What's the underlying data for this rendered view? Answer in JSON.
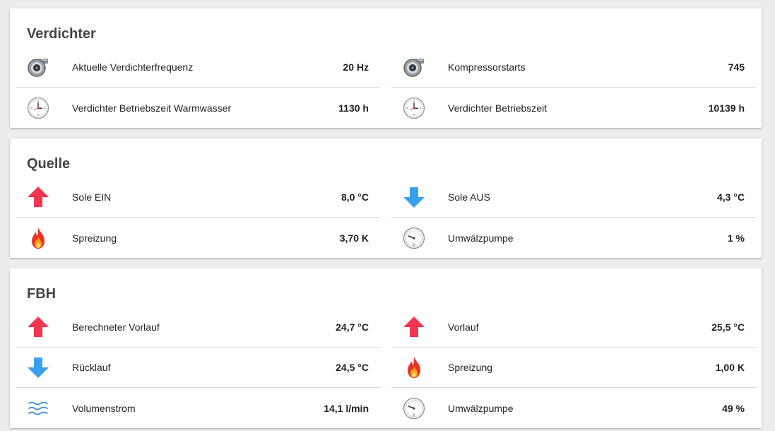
{
  "cards": [
    {
      "title": "Verdichter",
      "left": [
        {
          "icon": "compressor-icon",
          "label": "Aktuelle Verdichterfrequenz",
          "value": "20 Hz"
        },
        {
          "icon": "clock-icon",
          "label": "Verdichter Betriebszeit Warmwasser",
          "value": "1130 h"
        }
      ],
      "right": [
        {
          "icon": "compressor-icon",
          "label": "Kompressorstarts",
          "value": "745"
        },
        {
          "icon": "clock-icon",
          "label": "Verdichter Betriebszeit",
          "value": "10139 h"
        }
      ]
    },
    {
      "title": "Quelle",
      "left": [
        {
          "icon": "arrow-up-icon",
          "label": "Sole EIN",
          "value": "8,0 °C"
        },
        {
          "icon": "flame-icon",
          "label": "Spreizung",
          "value": "3,70 K"
        }
      ],
      "right": [
        {
          "icon": "arrow-down-icon",
          "label": "Sole AUS",
          "value": "4,3 °C"
        },
        {
          "icon": "pressure-gauge-icon",
          "label": "Umwälzpumpe",
          "value": "1 %"
        }
      ]
    },
    {
      "title": "FBH",
      "left": [
        {
          "icon": "arrow-up-icon",
          "label": "Berechneter Vorlauf",
          "value": "24,7 °C"
        },
        {
          "icon": "arrow-down-icon",
          "label": "Rücklauf",
          "value": "24,5 °C"
        },
        {
          "icon": "water-waves-icon",
          "label": "Volumenstrom",
          "value": "14,1 l/min"
        }
      ],
      "right": [
        {
          "icon": "arrow-up-icon",
          "label": "Vorlauf",
          "value": "25,5 °C"
        },
        {
          "icon": "flame-icon",
          "label": "Spreizung",
          "value": "1,00 K"
        },
        {
          "icon": "pressure-gauge-icon",
          "label": "Umwälzpumpe",
          "value": "49 %"
        }
      ]
    }
  ],
  "colors": {
    "arrow_up": "#f2364f",
    "arrow_down": "#3aa0ec",
    "waves": "#3b8fe0",
    "flame_outer": "#e8332a",
    "flame_inner": "#f7a21b"
  }
}
